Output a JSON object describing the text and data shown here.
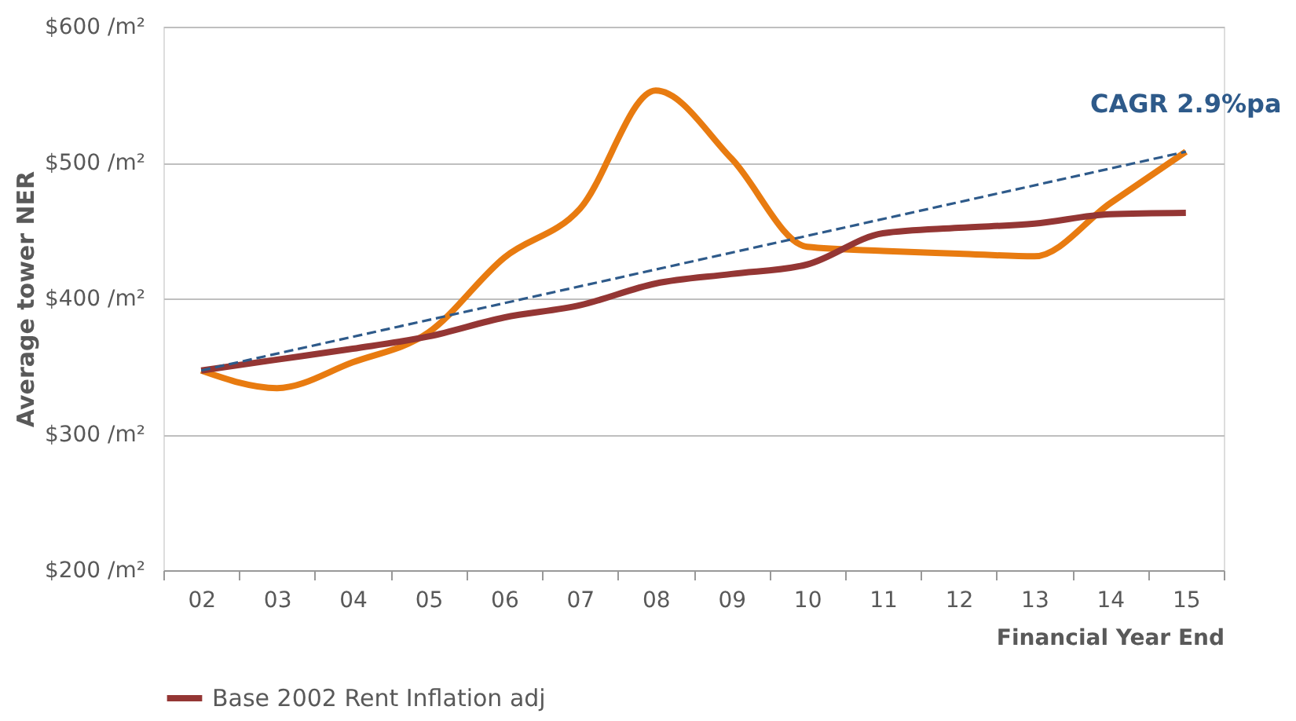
{
  "chart_data": {
    "type": "line",
    "ylabel": "Average tower NER",
    "xlabel": "Financial Year End",
    "categories": [
      "02",
      "03",
      "04",
      "05",
      "06",
      "07",
      "08",
      "09",
      "10",
      "11",
      "12",
      "13",
      "14",
      "15"
    ],
    "series": [
      {
        "color": "#e87b10",
        "values": [
          347,
          334,
          353,
          375,
          430,
          466,
          553,
          503,
          438,
          435,
          433,
          431,
          470,
          508
        ]
      },
      {
        "name": "Base 2002 Rent Inflation adj",
        "color": "#943634",
        "values": [
          347,
          355,
          363,
          372,
          386,
          395,
          411,
          418,
          425,
          448,
          452,
          455,
          462,
          463
        ]
      },
      {
        "type": "line",
        "color": "#2e5a8a",
        "line_style": "dashed",
        "x": [
          "02",
          "15"
        ],
        "values": [
          347,
          508
        ]
      }
    ],
    "ylim": [
      200,
      600
    ],
    "yticks": [
      {
        "value": 200,
        "label": "$200 /m²"
      },
      {
        "value": 300,
        "label": "$300 /m²"
      },
      {
        "value": 400,
        "label": "$400 /m²"
      },
      {
        "value": 500,
        "label": "$500 /m²"
      },
      {
        "value": 600,
        "label": "$600 /m²"
      }
    ],
    "annotations": [
      "CAGR 2.9%pa"
    ],
    "grid": "y",
    "legend": "bottom",
    "line_style": "solid",
    "marker": "none"
  }
}
